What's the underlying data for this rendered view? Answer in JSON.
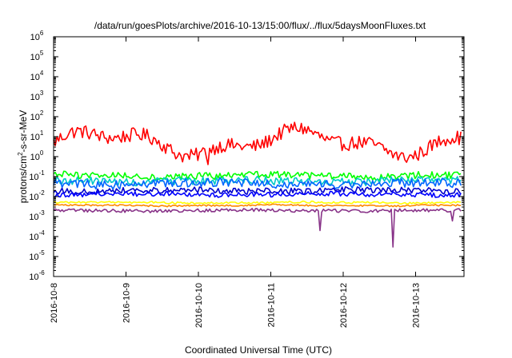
{
  "chart_data": {
    "type": "line",
    "title": "/data/run/goesPlots/archive/2016-10-13/15:00/flux/../flux/5daysMoonFluxes.txt",
    "xlabel": "Coordinated Universal Time (UTC)",
    "ylabel": {
      "pre": "protons/cm",
      "sup": "2",
      "post": "-s-sr-MeV"
    },
    "xlim": [
      "2016-10-08",
      "2016-10-13 15:00"
    ],
    "ylim": [
      1e-06,
      1000000.0
    ],
    "yscale": "log",
    "grid": false,
    "legend": "none",
    "x_ticks": [
      "2016-10-8",
      "2016-10-9",
      "2016-10-10",
      "2016-10-11",
      "2016-10-12",
      "2016-10-13"
    ],
    "y_ticks": [
      {
        "base": "10",
        "exp": "6"
      },
      {
        "base": "10",
        "exp": "5"
      },
      {
        "base": "10",
        "exp": "4"
      },
      {
        "base": "10",
        "exp": "3"
      },
      {
        "base": "10",
        "exp": "2"
      },
      {
        "base": "10",
        "exp": "1"
      },
      {
        "base": "10",
        "exp": "0"
      },
      {
        "base": "10",
        "exp": "-1"
      },
      {
        "base": "10",
        "exp": "-2"
      },
      {
        "base": "10",
        "exp": "-3"
      },
      {
        "base": "10",
        "exp": "-4"
      },
      {
        "base": "10",
        "exp": "-5"
      },
      {
        "base": "10",
        "exp": "-6"
      }
    ],
    "series": [
      {
        "color": "#ff0000",
        "level": 5.0,
        "noise": 0.35,
        "wave": 0.5,
        "dips": [
          {
            "at": "2016-10-10 03:00",
            "value": 0.4
          }
        ]
      },
      {
        "color": "#00ff00",
        "level": 0.11,
        "noise": 0.18,
        "wave": 0.05
      },
      {
        "color": "#00c8c8",
        "level": 0.06,
        "noise": 0.2,
        "wave": 0.05
      },
      {
        "color": "#0066ff",
        "level": 0.045,
        "noise": 0.22,
        "wave": 0.05
      },
      {
        "color": "#0000cc",
        "level": 0.02,
        "noise": 0.15,
        "wave": 0.04
      },
      {
        "color": "#0000ff",
        "level": 0.013,
        "noise": 0.12,
        "wave": 0.03
      },
      {
        "color": "#ffff00",
        "level": 0.005,
        "noise": 0.05,
        "wave": 0.02
      },
      {
        "color": "#ff8800",
        "level": 0.0036,
        "noise": 0.04,
        "wave": 0.02
      },
      {
        "color": "#883388",
        "level": 0.002,
        "noise": 0.08,
        "wave": 0.02,
        "dips": [
          {
            "at": "2016-10-11 16:30",
            "value": 0.0002
          },
          {
            "at": "2016-10-12 16:30",
            "value": 3e-05
          },
          {
            "at": "2016-10-13 12:00",
            "value": 0.0006
          }
        ]
      }
    ]
  }
}
